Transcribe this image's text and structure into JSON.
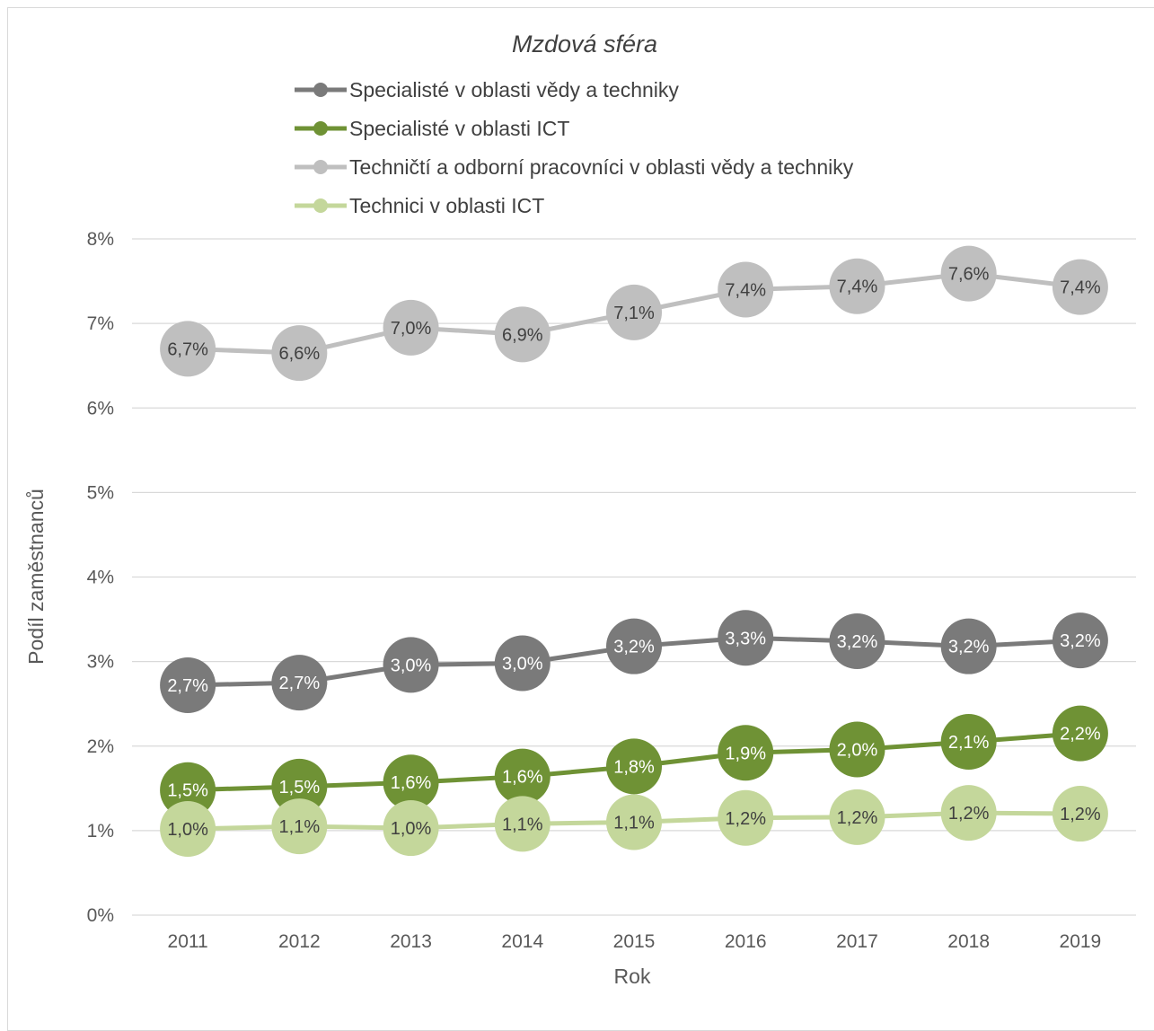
{
  "chart_data": {
    "type": "line",
    "title": "Mzdová sféra",
    "xlabel": "Rok",
    "ylabel": "Podíl zaměstnanců",
    "x": [
      "2011",
      "2012",
      "2013",
      "2014",
      "2015",
      "2016",
      "2017",
      "2018",
      "2019"
    ],
    "ylim": [
      0,
      8
    ],
    "yticks": [
      "0%",
      "1%",
      "2%",
      "3%",
      "4%",
      "5%",
      "6%",
      "7%",
      "8%"
    ],
    "grid": true,
    "legend_position": "top",
    "series": [
      {
        "name": "Specialisté v oblasti vědy a techniky",
        "color": "#7a7a7a",
        "values": [
          2.72,
          2.75,
          2.96,
          2.98,
          3.18,
          3.28,
          3.24,
          3.18,
          3.25
        ],
        "labels": [
          "2,7%",
          "2,7%",
          "3,0%",
          "3,0%",
          "3,2%",
          "3,3%",
          "3,2%",
          "3,2%",
          "3,2%"
        ]
      },
      {
        "name": "Specialisté v oblasti ICT",
        "color": "#6f9235",
        "values": [
          1.48,
          1.52,
          1.57,
          1.64,
          1.76,
          1.92,
          1.96,
          2.05,
          2.15
        ],
        "labels": [
          "1,5%",
          "1,5%",
          "1,6%",
          "1,6%",
          "1,8%",
          "1,9%",
          "2,0%",
          "2,1%",
          "2,2%"
        ]
      },
      {
        "name": "Techničtí a odborní pracovníci v oblasti vědy a techniky",
        "color": "#bfbfbf",
        "values": [
          6.7,
          6.65,
          6.95,
          6.87,
          7.13,
          7.4,
          7.44,
          7.59,
          7.43
        ],
        "labels": [
          "6,7%",
          "6,6%",
          "7,0%",
          "6,9%",
          "7,1%",
          "7,4%",
          "7,4%",
          "7,6%",
          "7,4%"
        ]
      },
      {
        "name": "Technici v oblasti ICT",
        "color": "#c4d79b",
        "values": [
          1.02,
          1.05,
          1.03,
          1.08,
          1.1,
          1.15,
          1.16,
          1.21,
          1.2
        ],
        "labels": [
          "1,0%",
          "1,1%",
          "1,0%",
          "1,1%",
          "1,1%",
          "1,2%",
          "1,2%",
          "1,2%",
          "1,2%"
        ]
      }
    ]
  }
}
